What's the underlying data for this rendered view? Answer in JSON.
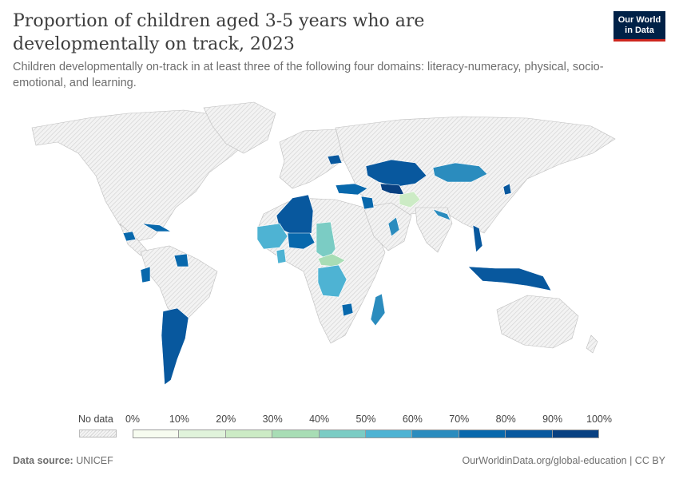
{
  "header": {
    "title": "Proportion of children aged 3-5 years who are developmentally on track, 2023",
    "subtitle": "Children developmentally on-track in at least three of the following four domains: literacy-numeracy, physical, socio-emotional, and learning.",
    "logo_line1": "Our World",
    "logo_line2": "in Data"
  },
  "legend": {
    "no_data_label": "No data",
    "ticks": [
      "0%",
      "10%",
      "20%",
      "30%",
      "40%",
      "50%",
      "60%",
      "70%",
      "80%",
      "90%",
      "100%"
    ],
    "bin_colors": [
      "#f7fcf0",
      "#e0f3db",
      "#ccebc5",
      "#a8ddb5",
      "#7bccc4",
      "#4eb3d3",
      "#2b8cbe",
      "#0868ac",
      "#08589e",
      "#084081"
    ]
  },
  "colors": {
    "no_data_fill": "#eeeeee",
    "no_data_hatch": "#d4d4d4",
    "border": "#bdbdbd"
  },
  "map_data": {
    "regions": [
      {
        "name": "Kazakhstan",
        "band": "80-90%"
      },
      {
        "name": "Mongolia",
        "band": "70-80%"
      },
      {
        "name": "Afghanistan",
        "band": "20-30%"
      },
      {
        "name": "Algeria",
        "band": "80-90%"
      },
      {
        "name": "Chad",
        "band": "40-50%"
      },
      {
        "name": "Central African Republic",
        "band": "30-40%"
      },
      {
        "name": "Democratic Republic of Congo",
        "band": "50-60%"
      },
      {
        "name": "Madagascar",
        "band": "60-70%"
      },
      {
        "name": "Argentina",
        "band": "80-90%"
      },
      {
        "name": "Indonesia",
        "band": "80-90%"
      },
      {
        "name": "Vietnam",
        "band": "80-90%"
      },
      {
        "name": "Mali",
        "band": "50-60%"
      },
      {
        "name": "Uzbekistan",
        "band": "90-100%"
      }
    ]
  },
  "footer": {
    "source_label": "Data source:",
    "source_value": "UNICEF",
    "url": "OurWorldinData.org/global-education | CC BY"
  }
}
